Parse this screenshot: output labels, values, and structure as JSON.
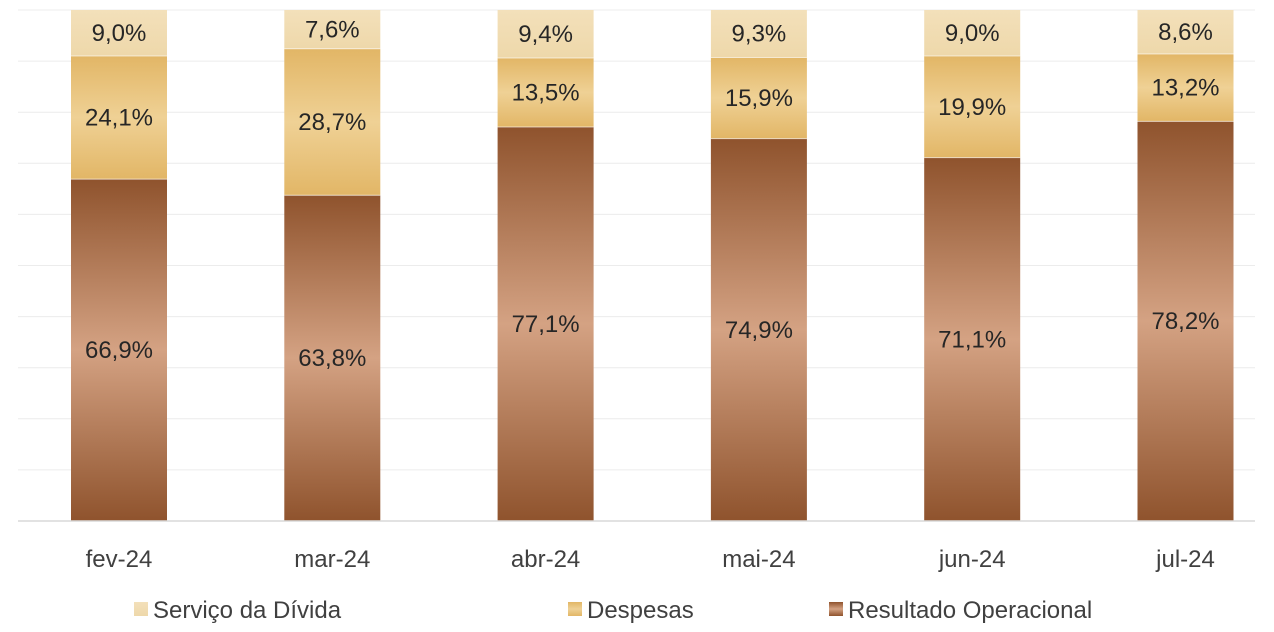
{
  "chart_data": {
    "type": "bar",
    "stacked": true,
    "normalized": true,
    "categories": [
      "fev-24",
      "mar-24",
      "abr-24",
      "mai-24",
      "jun-24",
      "jul-24"
    ],
    "series": [
      {
        "name": "Resultado Operacional",
        "values": [
          66.9,
          63.8,
          77.1,
          74.9,
          71.1,
          78.2
        ],
        "labels": [
          "66,9%",
          "63,8%",
          "77,1%",
          "74,9%",
          "71,1%",
          "78,2%"
        ],
        "color": "#8f532d"
      },
      {
        "name": "Despesas",
        "values": [
          24.1,
          28.7,
          13.5,
          15.9,
          19.9,
          13.2
        ],
        "labels": [
          "24,1%",
          "28,7%",
          "13,5%",
          "15,9%",
          "19,9%",
          "13,2%"
        ],
        "color": "#e7c27a"
      },
      {
        "name": "Serviço da Dívida",
        "values": [
          9.0,
          7.6,
          9.4,
          9.3,
          9.0,
          8.6
        ],
        "labels": [
          "9,0%",
          "7,6%",
          "9,4%",
          "9,3%",
          "9,0%",
          "8,6%"
        ],
        "color": "#f1ddb4"
      }
    ],
    "legend": {
      "placement": "bottom",
      "order": [
        "Serviço da Dívida",
        "Despesas",
        "Resultado Operacional"
      ]
    },
    "grid": true,
    "ylim": [
      0,
      100
    ]
  }
}
